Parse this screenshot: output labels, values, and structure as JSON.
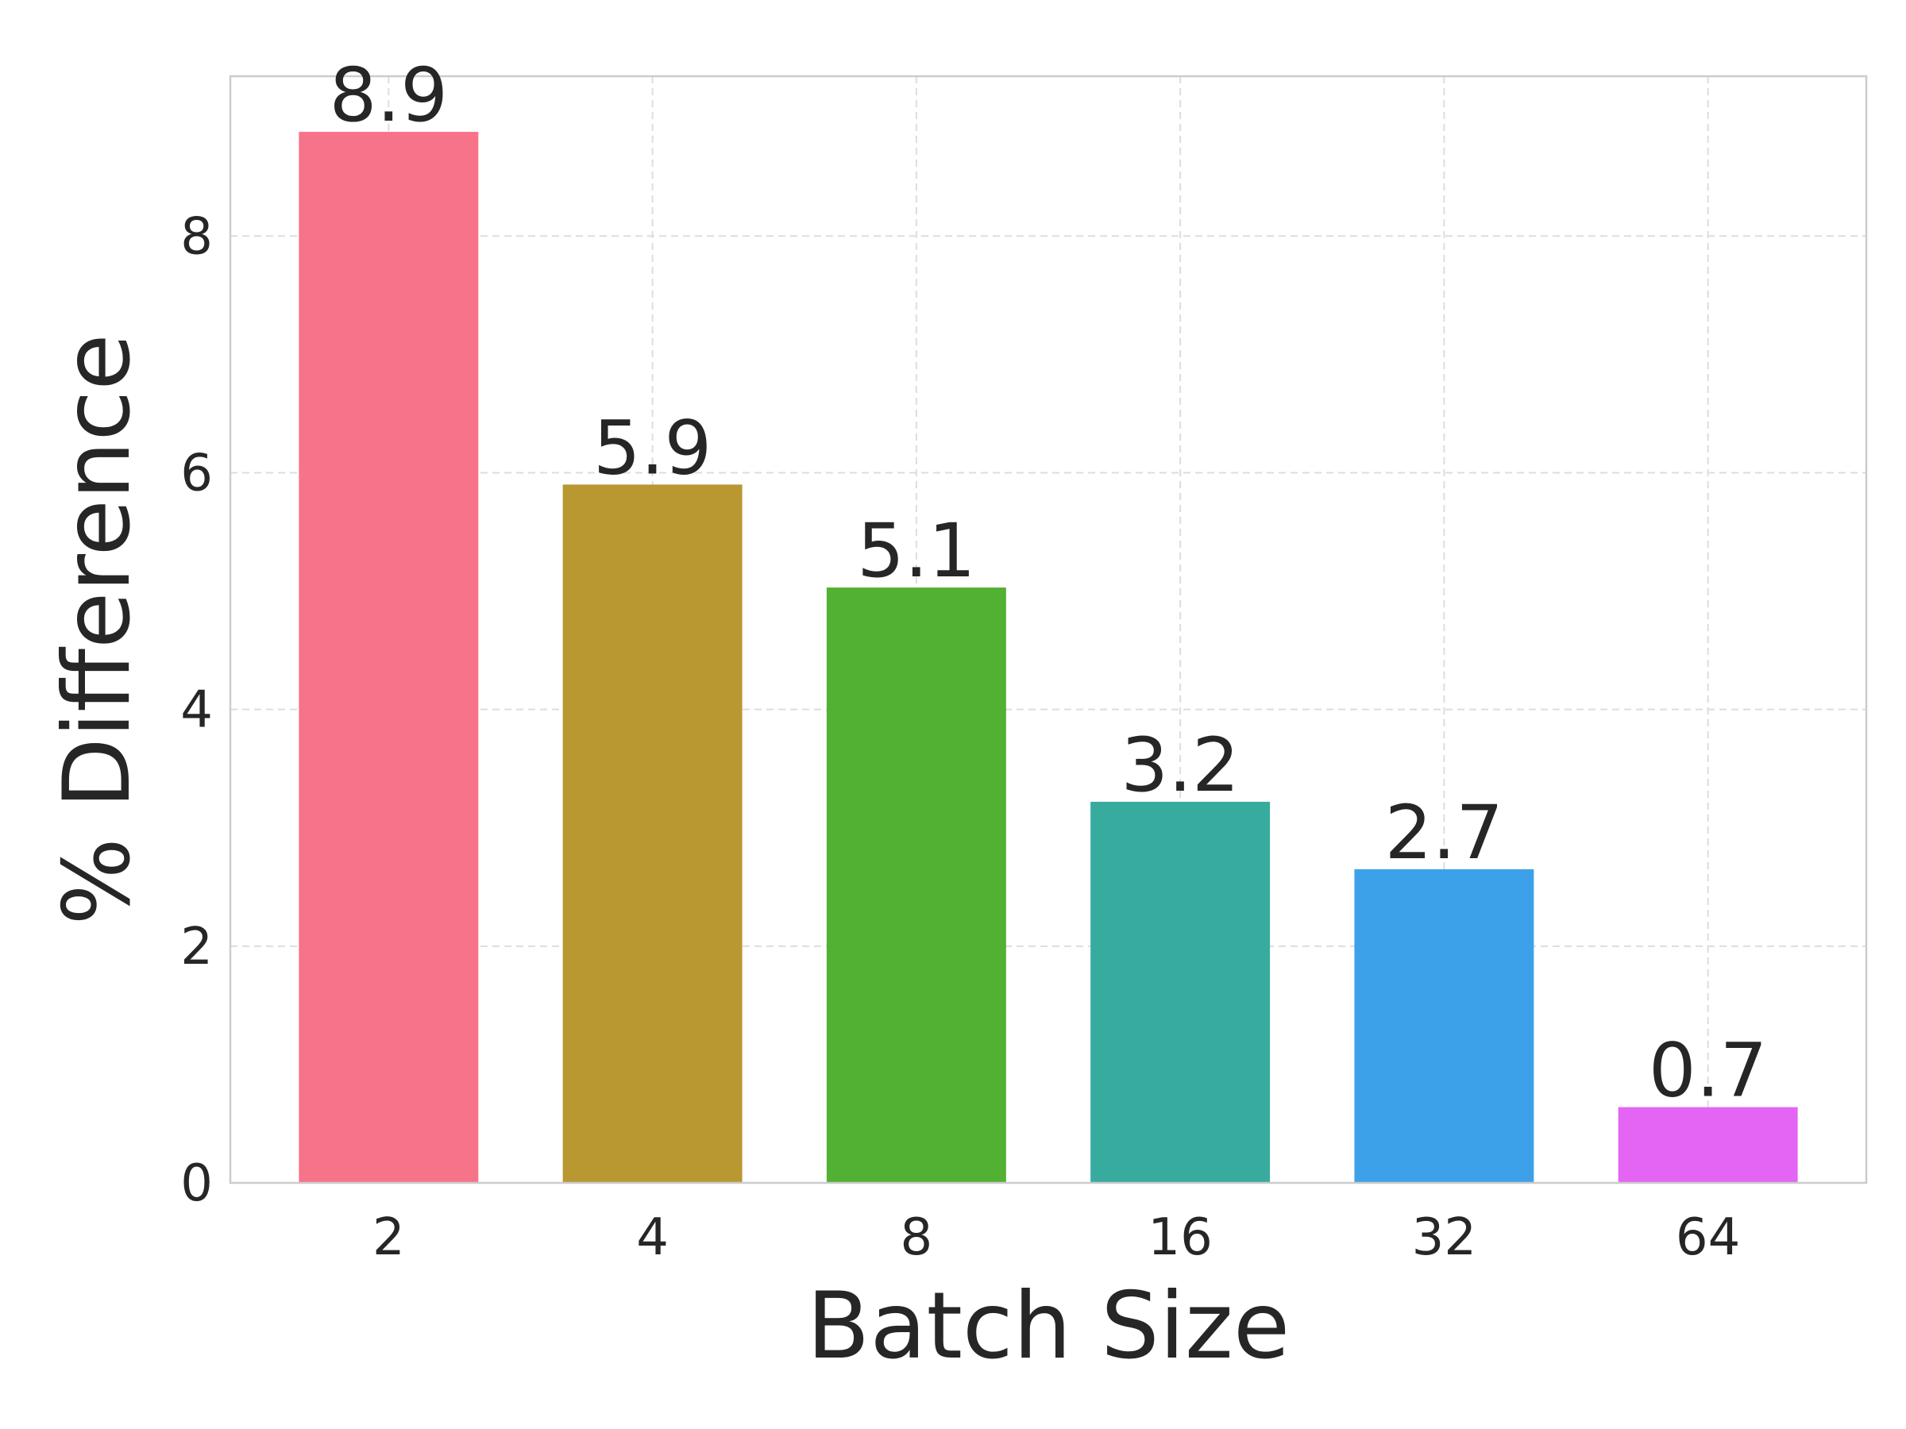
{
  "chart_data": {
    "type": "bar",
    "title": "",
    "xlabel": "Batch Size",
    "ylabel": "% Difference",
    "categories": [
      "2",
      "4",
      "8",
      "16",
      "32",
      "64"
    ],
    "values": [
      8.9,
      5.9,
      5.1,
      3.2,
      2.7,
      0.7
    ],
    "bar_heights": [
      8.88,
      5.9,
      5.03,
      3.22,
      2.65,
      0.64
    ],
    "value_labels": [
      "8.9",
      "5.9",
      "5.1",
      "3.2",
      "2.7",
      "0.7"
    ],
    "colors": [
      "#f7738a",
      "#b99731",
      "#52b032",
      "#38ab9f",
      "#3ca1e8",
      "#e465f4"
    ],
    "yticks": [
      0,
      2,
      4,
      6,
      8
    ],
    "ylim": [
      0,
      9.35
    ],
    "grid": true,
    "legend": "none"
  }
}
